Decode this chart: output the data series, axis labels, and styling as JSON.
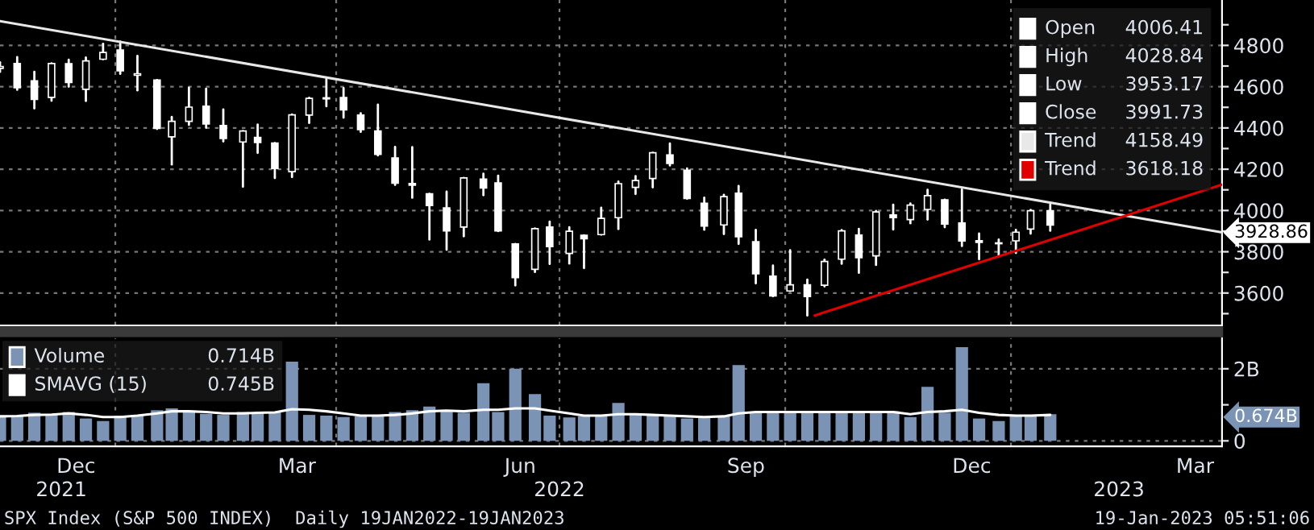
{
  "chart_data": [
    {
      "type": "candlestick",
      "legend": "top right",
      "grid": true,
      "tick_labels": "y",
      "x": [
        "2021-11-15",
        "2021-11-22",
        "2021-11-29",
        "2021-12-06",
        "2021-12-13",
        "2021-12-20",
        "2021-12-27",
        "2022-01-03",
        "2022-01-10",
        "2022-01-18",
        "2022-01-24",
        "2022-01-31",
        "2022-02-07",
        "2022-02-14",
        "2022-02-22",
        "2022-02-28",
        "2022-03-07",
        "2022-03-14",
        "2022-03-21",
        "2022-03-28",
        "2022-04-04",
        "2022-04-11",
        "2022-04-18",
        "2022-04-25",
        "2022-05-02",
        "2022-05-09",
        "2022-05-16",
        "2022-05-23",
        "2022-05-31",
        "2022-06-06",
        "2022-06-13",
        "2022-06-21",
        "2022-06-27",
        "2022-07-05",
        "2022-07-11",
        "2022-07-18",
        "2022-07-25",
        "2022-08-01",
        "2022-08-08",
        "2022-08-15",
        "2022-08-22",
        "2022-08-29",
        "2022-09-06",
        "2022-09-12",
        "2022-09-19",
        "2022-09-26",
        "2022-10-03",
        "2022-10-10",
        "2022-10-17",
        "2022-10-24",
        "2022-10-31",
        "2022-11-07",
        "2022-11-14",
        "2022-11-21",
        "2022-11-28",
        "2022-12-05",
        "2022-12-12",
        "2022-12-19",
        "2022-12-27",
        "2023-01-03",
        "2023-01-09",
        "2023-01-17"
      ],
      "ohlc": [
        [
          4689,
          4718,
          4672,
          4698
        ],
        [
          4712,
          4743,
          4585,
          4595
        ],
        [
          4628,
          4672,
          4495,
          4538
        ],
        [
          4548,
          4713,
          4532,
          4712
        ],
        [
          4711,
          4731,
          4600,
          4620
        ],
        [
          4587,
          4741,
          4531,
          4725
        ],
        [
          4733,
          4808,
          4733,
          4766
        ],
        [
          4778,
          4818,
          4662,
          4677
        ],
        [
          4655,
          4749,
          4582,
          4663
        ],
        [
          4632,
          4632,
          4395,
          4398
        ],
        [
          4357,
          4453,
          4223,
          4432
        ],
        [
          4432,
          4595,
          4415,
          4501
        ],
        [
          4505,
          4590,
          4401,
          4419
        ],
        [
          4412,
          4490,
          4335,
          4349
        ],
        [
          4332,
          4385,
          4115,
          4385
        ],
        [
          4354,
          4416,
          4279,
          4329
        ],
        [
          4327,
          4327,
          4157,
          4204
        ],
        [
          4188,
          4465,
          4162,
          4463
        ],
        [
          4462,
          4546,
          4424,
          4543
        ],
        [
          4541,
          4637,
          4505,
          4546
        ],
        [
          4547,
          4593,
          4450,
          4488
        ],
        [
          4462,
          4471,
          4381,
          4392
        ],
        [
          4385,
          4513,
          4267,
          4272
        ],
        [
          4255,
          4308,
          4124,
          4132
        ],
        [
          4131,
          4307,
          4062,
          4123
        ],
        [
          4081,
          4081,
          3859,
          4024
        ],
        [
          4013,
          4091,
          3810,
          3901
        ],
        [
          3920,
          4158,
          3875,
          4158
        ],
        [
          4152,
          4178,
          4074,
          4109
        ],
        [
          4134,
          4169,
          3900,
          3901
        ],
        [
          3838,
          3838,
          3637,
          3675
        ],
        [
          3715,
          3913,
          3702,
          3912
        ],
        [
          3920,
          3946,
          3741,
          3825
        ],
        [
          3792,
          3919,
          3743,
          3899
        ],
        [
          3880,
          3880,
          3721,
          3863
        ],
        [
          3883,
          4013,
          3883,
          3962
        ],
        [
          3965,
          4140,
          3910,
          4130
        ],
        [
          4112,
          4167,
          4080,
          4145
        ],
        [
          4155,
          4280,
          4112,
          4280
        ],
        [
          4269,
          4325,
          4218,
          4228
        ],
        [
          4195,
          4204,
          4057,
          4058
        ],
        [
          4035,
          4062,
          3907,
          3924
        ],
        [
          3930,
          4076,
          3886,
          4067
        ],
        [
          4084,
          4119,
          3838,
          3873
        ],
        [
          3849,
          3906,
          3647,
          3693
        ],
        [
          3682,
          3733,
          3585,
          3586
        ],
        [
          3610,
          3807,
          3610,
          3640
        ],
        [
          3640,
          3665,
          3491,
          3583
        ],
        [
          3638,
          3762,
          3632,
          3753
        ],
        [
          3764,
          3905,
          3742,
          3901
        ],
        [
          3881,
          3911,
          3698,
          3771
        ],
        [
          3780,
          3998,
          3736,
          3993
        ],
        [
          3978,
          4028,
          3908,
          3965
        ],
        [
          3956,
          4034,
          3938,
          4026
        ],
        [
          4005,
          4100,
          3956,
          4072
        ],
        [
          4052,
          4052,
          3919,
          3934
        ],
        [
          3939,
          4101,
          3828,
          3852
        ],
        [
          3854,
          3888,
          3764,
          3845
        ],
        [
          3843,
          3859,
          3784,
          3839
        ],
        [
          3853,
          3906,
          3794,
          3895
        ],
        [
          3910,
          4003,
          3888,
          3999
        ],
        [
          3999,
          4029,
          3902,
          3929
        ]
      ],
      "series": [
        {
          "name": "Trend",
          "type": "line",
          "color": "#e8e8e8",
          "x": [
            "2021-11-15",
            "2023-03-28"
          ],
          "values": [
            4918,
            3894
          ]
        },
        {
          "name": "Trend",
          "type": "line",
          "color": "#e00000",
          "x": [
            "2022-10-13",
            "2023-03-28"
          ],
          "values": [
            3491,
            4125
          ]
        }
      ],
      "xlim": [
        "2021-11-15",
        "2023-03-28"
      ],
      "ylim": [
        3443,
        5020
      ],
      "xticks": [
        {
          "value": "2022-01-01",
          "label": null
        },
        {
          "value": "2022-04-01",
          "label": null
        },
        {
          "value": "2022-07-01",
          "label": null
        },
        {
          "value": "2022-10-01",
          "label": null
        },
        {
          "value": "2023-01-01",
          "label": null
        }
      ],
      "yticks": [
        {
          "value": 3500,
          "label": null
        },
        3600,
        {
          "value": 3700,
          "label": null
        },
        3800,
        {
          "value": 3900,
          "label": null
        },
        4000,
        {
          "value": 4100,
          "label": null
        },
        4200,
        {
          "value": 4300,
          "label": null
        },
        4400,
        {
          "value": 4500,
          "label": null
        },
        4600,
        {
          "value": 4700,
          "label": null
        },
        4800,
        {
          "value": 4900,
          "label": null
        }
      ],
      "annotations": [
        "Open",
        "4006.41",
        "High",
        "4028.84",
        "Low",
        "3953.17",
        "Close",
        "3991.73",
        "4158.49",
        "3618.18",
        "3928.86"
      ]
    },
    {
      "type": "bar",
      "legend": "top left",
      "grid": true,
      "x": [
        "2021-11-15",
        "2021-11-22",
        "2021-11-29",
        "2021-12-06",
        "2021-12-13",
        "2021-12-20",
        "2021-12-27",
        "2022-01-03",
        "2022-01-10",
        "2022-01-18",
        "2022-01-24",
        "2022-01-31",
        "2022-02-07",
        "2022-02-14",
        "2022-02-22",
        "2022-02-28",
        "2022-03-07",
        "2022-03-14",
        "2022-03-21",
        "2022-03-28",
        "2022-04-04",
        "2022-04-11",
        "2022-04-18",
        "2022-04-25",
        "2022-05-02",
        "2022-05-09",
        "2022-05-16",
        "2022-05-23",
        "2022-05-31",
        "2022-06-06",
        "2022-06-13",
        "2022-06-21",
        "2022-06-27",
        "2022-07-05",
        "2022-07-11",
        "2022-07-18",
        "2022-07-25",
        "2022-08-01",
        "2022-08-08",
        "2022-08-15",
        "2022-08-22",
        "2022-08-29",
        "2022-09-06",
        "2022-09-12",
        "2022-09-19",
        "2022-09-26",
        "2022-10-03",
        "2022-10-10",
        "2022-10-17",
        "2022-10-24",
        "2022-10-31",
        "2022-11-07",
        "2022-11-14",
        "2022-11-21",
        "2022-11-28",
        "2022-12-05",
        "2022-12-12",
        "2022-12-19",
        "2022-12-27",
        "2023-01-03",
        "2023-01-09",
        "2023-01-17"
      ],
      "series": [
        {
          "name": "Volume",
          "type": "bar",
          "color": "#7b94b6",
          "values": [
            0.66,
            0.7,
            0.78,
            0.72,
            0.8,
            0.62,
            0.55,
            0.7,
            0.72,
            0.85,
            0.9,
            0.82,
            0.75,
            0.72,
            0.8,
            0.78,
            0.8,
            2.2,
            0.72,
            0.7,
            0.66,
            0.68,
            0.72,
            0.8,
            0.85,
            0.95,
            0.82,
            0.78,
            1.6,
            0.8,
            2.0,
            1.3,
            0.7,
            0.65,
            0.68,
            0.7,
            1.05,
            0.72,
            0.7,
            0.68,
            0.62,
            0.66,
            0.7,
            2.1,
            0.8,
            0.8,
            0.78,
            0.8,
            0.82,
            0.8,
            0.78,
            0.8,
            0.82,
            0.66,
            1.5,
            0.78,
            2.6,
            0.62,
            0.55,
            0.7,
            0.72,
            0.74
          ]
        },
        {
          "name": "SMAVG (15)",
          "type": "line",
          "color": "#ffffff",
          "values": [
            0.68,
            0.69,
            0.72,
            0.73,
            0.76,
            0.72,
            0.66,
            0.66,
            0.7,
            0.76,
            0.82,
            0.82,
            0.8,
            0.76,
            0.76,
            0.78,
            0.79,
            0.88,
            0.86,
            0.82,
            0.76,
            0.7,
            0.7,
            0.72,
            0.76,
            0.82,
            0.84,
            0.82,
            0.86,
            0.86,
            0.9,
            0.9,
            0.84,
            0.76,
            0.7,
            0.7,
            0.74,
            0.74,
            0.72,
            0.7,
            0.68,
            0.66,
            0.68,
            0.76,
            0.8,
            0.8,
            0.8,
            0.8,
            0.8,
            0.8,
            0.8,
            0.8,
            0.8,
            0.74,
            0.8,
            0.82,
            0.86,
            0.78,
            0.72,
            0.7,
            0.7,
            0.72
          ]
        }
      ],
      "xlim": [
        "2021-11-15",
        "2023-03-28"
      ],
      "ylim": [
        -0.15,
        2.85
      ],
      "xticks": [
        {
          "value": "2021-12-16",
          "label": "Dec"
        },
        {
          "value": "2022-01-01",
          "label": null
        },
        {
          "value": "2022-03-16",
          "label": "Mar"
        },
        {
          "value": "2022-04-01",
          "label": null
        },
        {
          "value": "2022-06-15",
          "label": "Jun"
        },
        {
          "value": "2022-07-01",
          "label": null
        },
        {
          "value": "2022-09-15",
          "label": "Sep"
        },
        {
          "value": "2022-10-01",
          "label": null
        },
        {
          "value": "2022-12-16",
          "label": "Dec"
        },
        {
          "value": "2023-01-01",
          "label": null
        },
        {
          "value": "2023-03-17",
          "label": "Mar"
        }
      ],
      "yticks": [
        {
          "value": 0,
          "label": "0"
        },
        {
          "value": 1,
          "label": null
        },
        {
          "value": 2,
          "label": "2B"
        }
      ],
      "x2lim": [
        "2021-11-15",
        "2023-03-28"
      ],
      "x2ticks": [
        {
          "value": "2021-12-10",
          "label": "2021"
        },
        {
          "value": "2022-07-01",
          "label": "2022"
        },
        {
          "value": "2023-02-14",
          "label": "2023"
        }
      ],
      "annotations": [
        "0.714B",
        "0.745B",
        "0.674B",
        "SPX Index (S&P 500 INDEX)  Daily 19JAN2022-19JAN2023",
        "19-Jan-2023 05:51:06"
      ]
    }
  ]
}
